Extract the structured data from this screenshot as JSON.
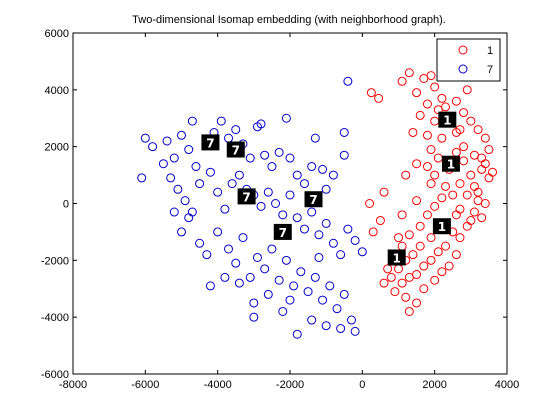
{
  "chart_data": {
    "type": "scatter",
    "title": "Two-dimensional Isomap embedding (with neighborhood graph).",
    "xlabel": "",
    "ylabel": "",
    "xlim": [
      -8000,
      4000
    ],
    "ylim": [
      -6000,
      6000
    ],
    "xticks": [
      -8000,
      -6000,
      -4000,
      -2000,
      0,
      2000,
      4000
    ],
    "yticks": [
      -6000,
      -4000,
      -2000,
      0,
      2000,
      4000,
      6000
    ],
    "xtick_labels": [
      "-8000",
      "-6000",
      "-4000",
      "-2000",
      "0",
      "2000",
      "4000"
    ],
    "ytick_labels": [
      "-6000",
      "-4000",
      "-2000",
      "0",
      "2000",
      "4000",
      "6000"
    ],
    "grid": false,
    "legend_position": "top-right",
    "marker": "open-circle",
    "series": [
      {
        "name": "1",
        "color": "#ff0000",
        "points": [
          [
            250,
            3900
          ],
          [
            450,
            3700
          ],
          [
            1100,
            4300
          ],
          [
            1300,
            4600
          ],
          [
            1500,
            3900
          ],
          [
            1700,
            4400
          ],
          [
            1900,
            4500
          ],
          [
            2000,
            4100
          ],
          [
            2200,
            3700
          ],
          [
            2600,
            3600
          ],
          [
            2900,
            4000
          ],
          [
            1800,
            3500
          ],
          [
            2100,
            3300
          ],
          [
            2400,
            3000
          ],
          [
            2800,
            3200
          ],
          [
            3000,
            2900
          ],
          [
            3200,
            2600
          ],
          [
            3400,
            2300
          ],
          [
            2600,
            2500
          ],
          [
            2000,
            2900
          ],
          [
            1600,
            3100
          ],
          [
            1400,
            2500
          ],
          [
            1800,
            2400
          ],
          [
            2200,
            2300
          ],
          [
            2800,
            2000
          ],
          [
            3100,
            1700
          ],
          [
            3300,
            1600
          ],
          [
            3600,
            1100
          ],
          [
            3500,
            900
          ],
          [
            2600,
            1800
          ],
          [
            1900,
            1900
          ],
          [
            1500,
            1400
          ],
          [
            1200,
            1000
          ],
          [
            1800,
            1300
          ],
          [
            2000,
            1000
          ],
          [
            2300,
            600
          ],
          [
            2700,
            700
          ],
          [
            3000,
            1000
          ],
          [
            3200,
            400
          ],
          [
            3400,
            0
          ],
          [
            3300,
            -500
          ],
          [
            3100,
            -300
          ],
          [
            2900,
            -800
          ],
          [
            2700,
            -1200
          ],
          [
            2500,
            -1000
          ],
          [
            2300,
            -1500
          ],
          [
            2100,
            -1700
          ],
          [
            1900,
            -2000
          ],
          [
            1700,
            -2200
          ],
          [
            1500,
            -2500
          ],
          [
            1300,
            -2600
          ],
          [
            1100,
            -2800
          ],
          [
            900,
            -3100
          ],
          [
            1200,
            -3300
          ],
          [
            1500,
            -3500
          ],
          [
            1700,
            -3000
          ],
          [
            2000,
            -2700
          ],
          [
            2200,
            -2400
          ],
          [
            2400,
            -2200
          ],
          [
            2600,
            -1800
          ],
          [
            1100,
            -1500
          ],
          [
            900,
            -1900
          ],
          [
            700,
            -2300
          ],
          [
            600,
            -2800
          ],
          [
            1000,
            -1200
          ],
          [
            1300,
            -1100
          ],
          [
            1600,
            -800
          ],
          [
            1800,
            -400
          ],
          [
            2000,
            -100
          ],
          [
            2200,
            200
          ],
          [
            2500,
            300
          ],
          [
            2900,
            300
          ],
          [
            3100,
            600
          ],
          [
            3300,
            1200
          ],
          [
            2800,
            1500
          ],
          [
            2400,
            1200
          ],
          [
            1900,
            700
          ],
          [
            1500,
            100
          ],
          [
            1100,
            -400
          ],
          [
            500,
            -600
          ],
          [
            300,
            -1000
          ],
          [
            200,
            0
          ],
          [
            600,
            400
          ],
          [
            2100,
            1600
          ],
          [
            2700,
            2600
          ],
          [
            3500,
            1900
          ],
          [
            3200,
            100
          ],
          [
            2600,
            -400
          ],
          [
            1400,
            -1800
          ],
          [
            1000,
            -2300
          ],
          [
            800,
            -2600
          ],
          [
            1200,
            -2000
          ],
          [
            1600,
            -1500
          ],
          [
            1900,
            -1200
          ],
          [
            2300,
            -700
          ],
          [
            2700,
            -200
          ],
          [
            3000,
            -600
          ],
          [
            1300,
            -3800
          ],
          [
            2300,
            3400
          ],
          [
            3400,
            1400
          ]
        ]
      },
      {
        "name": "7",
        "color": "#0000cc",
        "points": [
          [
            -6000,
            2300
          ],
          [
            -6100,
            900
          ],
          [
            -5800,
            2000
          ],
          [
            -5400,
            2200
          ],
          [
            -5200,
            1600
          ],
          [
            -5000,
            2400
          ],
          [
            -4800,
            1900
          ],
          [
            -4600,
            1300
          ],
          [
            -4300,
            2100
          ],
          [
            -4100,
            2500
          ],
          [
            -3900,
            2900
          ],
          [
            -3700,
            2300
          ],
          [
            -3500,
            2600
          ],
          [
            -3300,
            2100
          ],
          [
            -3100,
            1600
          ],
          [
            -2900,
            2700
          ],
          [
            -2800,
            2800
          ],
          [
            -2700,
            1700
          ],
          [
            -2500,
            1300
          ],
          [
            -2300,
            1800
          ],
          [
            -2100,
            3000
          ],
          [
            -2000,
            1600
          ],
          [
            -1800,
            1000
          ],
          [
            -1600,
            700
          ],
          [
            -1400,
            1300
          ],
          [
            -1300,
            2300
          ],
          [
            -1100,
            1200
          ],
          [
            -1000,
            500
          ],
          [
            -800,
            1000
          ],
          [
            -500,
            2500
          ],
          [
            -500,
            1700
          ],
          [
            -400,
            4300
          ],
          [
            -5500,
            1400
          ],
          [
            -5300,
            900
          ],
          [
            -5100,
            500
          ],
          [
            -4900,
            100
          ],
          [
            -4700,
            -300
          ],
          [
            -4500,
            700
          ],
          [
            -4200,
            1100
          ],
          [
            -4000,
            400
          ],
          [
            -3800,
            -200
          ],
          [
            -3600,
            700
          ],
          [
            -3400,
            1000
          ],
          [
            -3200,
            500
          ],
          [
            -3000,
            300
          ],
          [
            -2800,
            -100
          ],
          [
            -2600,
            400
          ],
          [
            -2400,
            0
          ],
          [
            -2200,
            -400
          ],
          [
            -2000,
            300
          ],
          [
            -1800,
            -500
          ],
          [
            -1600,
            -900
          ],
          [
            -1400,
            -300
          ],
          [
            -1200,
            -1100
          ],
          [
            -1000,
            -700
          ],
          [
            -800,
            -1400
          ],
          [
            -600,
            -1800
          ],
          [
            -400,
            -900
          ],
          [
            -200,
            -1300
          ],
          [
            0,
            -1700
          ],
          [
            -5200,
            -300
          ],
          [
            -5000,
            -1000
          ],
          [
            -4800,
            -500
          ],
          [
            -4500,
            -1400
          ],
          [
            -4300,
            -1800
          ],
          [
            -4000,
            -1000
          ],
          [
            -3700,
            -1600
          ],
          [
            -3500,
            -2100
          ],
          [
            -3300,
            -1200
          ],
          [
            -3100,
            -2600
          ],
          [
            -2900,
            -1900
          ],
          [
            -2700,
            -2300
          ],
          [
            -2500,
            -1600
          ],
          [
            -2300,
            -2700
          ],
          [
            -2100,
            -2000
          ],
          [
            -1900,
            -2900
          ],
          [
            -1700,
            -2400
          ],
          [
            -1500,
            -3100
          ],
          [
            -1300,
            -2600
          ],
          [
            -1100,
            -3400
          ],
          [
            -900,
            -2900
          ],
          [
            -700,
            -3700
          ],
          [
            -500,
            -3200
          ],
          [
            -300,
            -4100
          ],
          [
            -600,
            -4400
          ],
          [
            -1000,
            -4300
          ],
          [
            -1400,
            -4100
          ],
          [
            -1800,
            -4600
          ],
          [
            -2200,
            -3800
          ],
          [
            -2600,
            -3200
          ],
          [
            -3000,
            -3500
          ],
          [
            -3400,
            -2800
          ],
          [
            -3800,
            -2600
          ],
          [
            -4200,
            -2900
          ],
          [
            -3000,
            -4000
          ],
          [
            -2000,
            -3400
          ],
          [
            -1200,
            -1900
          ],
          [
            -200,
            -4500
          ],
          [
            -3600,
            1800
          ],
          [
            -4700,
            2900
          ]
        ]
      }
    ],
    "annotations": [
      {
        "label": "7",
        "x": -4200,
        "y": 2150
      },
      {
        "label": "7",
        "x": -3500,
        "y": 1900
      },
      {
        "label": "7",
        "x": -3200,
        "y": 250
      },
      {
        "label": "7",
        "x": -1350,
        "y": 150
      },
      {
        "label": "7",
        "x": -2200,
        "y": -1000
      },
      {
        "label": "1",
        "x": 2350,
        "y": 2950
      },
      {
        "label": "1",
        "x": 2450,
        "y": 1400
      },
      {
        "label": "1",
        "x": 2200,
        "y": -800
      },
      {
        "label": "1",
        "x": 950,
        "y": -1900
      }
    ]
  }
}
